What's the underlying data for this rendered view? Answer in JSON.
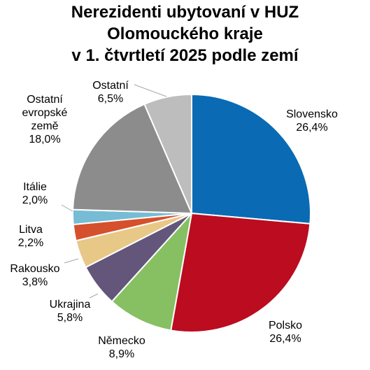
{
  "chart_data": {
    "type": "pie",
    "title": [
      "Nerezidenti ubytovaní v HUZ",
      "Olomouckého kraje",
      "v 1. čtvrtletí 2025 podle zemí"
    ],
    "slices": [
      {
        "name": "Slovensko",
        "label_lines": [
          "Slovensko"
        ],
        "value": 26.4,
        "value_label": "26,4%",
        "color": "#0a6ab3"
      },
      {
        "name": "Polsko",
        "label_lines": [
          "Polsko"
        ],
        "value": 26.4,
        "value_label": "26,4%",
        "color": "#bb0c20"
      },
      {
        "name": "Německo",
        "label_lines": [
          "Německo"
        ],
        "value": 8.9,
        "value_label": "8,9%",
        "color": "#86c062"
      },
      {
        "name": "Ukrajina",
        "label_lines": [
          "Ukrajina"
        ],
        "value": 5.8,
        "value_label": "5,8%",
        "color": "#63567a"
      },
      {
        "name": "Rakousko",
        "label_lines": [
          "Rakousko"
        ],
        "value": 3.8,
        "value_label": "3,8%",
        "color": "#e8c887"
      },
      {
        "name": "Litva",
        "label_lines": [
          "Litva"
        ],
        "value": 2.2,
        "value_label": "2,2%",
        "color": "#d5502c"
      },
      {
        "name": "Itálie",
        "label_lines": [
          "Itálie"
        ],
        "value": 2.0,
        "value_label": "2,0%",
        "color": "#76bcd4"
      },
      {
        "name": "Ostatní evropské země",
        "label_lines": [
          "Ostatní",
          "evropské",
          "země"
        ],
        "value": 18.0,
        "value_label": "18,0%",
        "color": "#8c8c8c"
      },
      {
        "name": "Ostatní",
        "label_lines": [
          "Ostatní"
        ],
        "value": 6.5,
        "value_label": "6,5%",
        "color": "#bdbdbd"
      }
    ]
  }
}
